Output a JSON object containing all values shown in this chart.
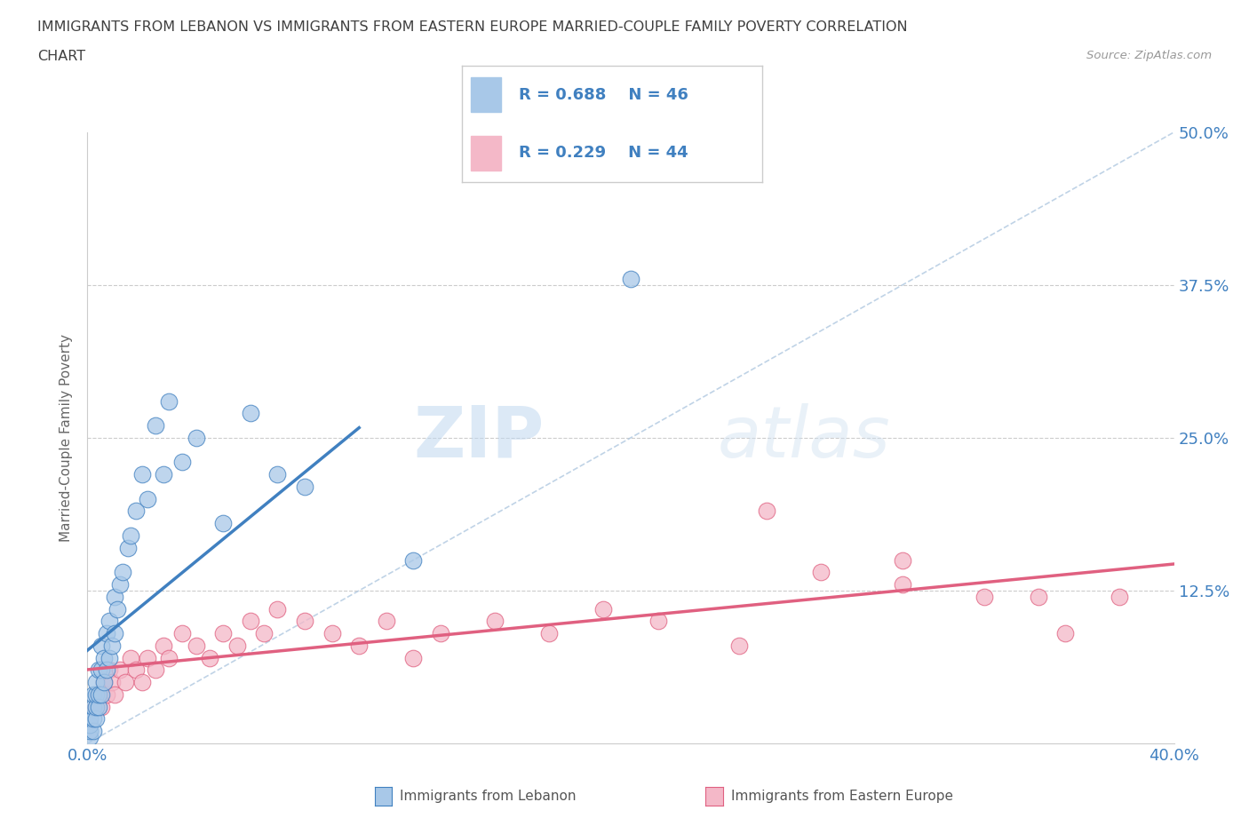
{
  "title_line1": "IMMIGRANTS FROM LEBANON VS IMMIGRANTS FROM EASTERN EUROPE MARRIED-COUPLE FAMILY POVERTY CORRELATION",
  "title_line2": "CHART",
  "source": "Source: ZipAtlas.com",
  "ylabel": "Married-Couple Family Poverty",
  "xmin": 0.0,
  "xmax": 0.4,
  "ymin": 0.0,
  "ymax": 0.5,
  "lebanon_color": "#A8C8E8",
  "eastern_europe_color": "#F4B8C8",
  "regression_blue_color": "#4080C0",
  "regression_pink_color": "#E06080",
  "diagonal_color": "#B0C8E0",
  "legend_R1": "R = 0.688",
  "legend_N1": "N = 46",
  "legend_R2": "R = 0.229",
  "legend_N2": "N = 44",
  "label1": "Immigrants from Lebanon",
  "label2": "Immigrants from Eastern Europe",
  "lebanon_x": [
    0.001,
    0.001,
    0.001,
    0.001,
    0.002,
    0.002,
    0.002,
    0.002,
    0.003,
    0.003,
    0.003,
    0.003,
    0.004,
    0.004,
    0.004,
    0.005,
    0.005,
    0.005,
    0.006,
    0.006,
    0.007,
    0.007,
    0.008,
    0.008,
    0.009,
    0.01,
    0.01,
    0.011,
    0.012,
    0.013,
    0.015,
    0.016,
    0.018,
    0.02,
    0.022,
    0.025,
    0.028,
    0.03,
    0.035,
    0.04,
    0.05,
    0.06,
    0.07,
    0.08,
    0.12,
    0.2
  ],
  "lebanon_y": [
    0.005,
    0.01,
    0.015,
    0.02,
    0.01,
    0.02,
    0.03,
    0.04,
    0.02,
    0.03,
    0.04,
    0.05,
    0.03,
    0.04,
    0.06,
    0.04,
    0.06,
    0.08,
    0.05,
    0.07,
    0.06,
    0.09,
    0.07,
    0.1,
    0.08,
    0.09,
    0.12,
    0.11,
    0.13,
    0.14,
    0.16,
    0.17,
    0.19,
    0.22,
    0.2,
    0.26,
    0.22,
    0.28,
    0.23,
    0.25,
    0.18,
    0.27,
    0.22,
    0.21,
    0.15,
    0.38
  ],
  "eastern_europe_x": [
    0.003,
    0.004,
    0.005,
    0.006,
    0.007,
    0.008,
    0.009,
    0.01,
    0.012,
    0.014,
    0.016,
    0.018,
    0.02,
    0.022,
    0.025,
    0.028,
    0.03,
    0.035,
    0.04,
    0.045,
    0.05,
    0.055,
    0.06,
    0.065,
    0.07,
    0.08,
    0.09,
    0.1,
    0.11,
    0.12,
    0.13,
    0.15,
    0.17,
    0.19,
    0.21,
    0.24,
    0.27,
    0.3,
    0.33,
    0.36,
    0.38,
    0.25,
    0.3,
    0.35
  ],
  "eastern_europe_y": [
    0.03,
    0.04,
    0.03,
    0.05,
    0.04,
    0.06,
    0.05,
    0.04,
    0.06,
    0.05,
    0.07,
    0.06,
    0.05,
    0.07,
    0.06,
    0.08,
    0.07,
    0.09,
    0.08,
    0.07,
    0.09,
    0.08,
    0.1,
    0.09,
    0.11,
    0.1,
    0.09,
    0.08,
    0.1,
    0.07,
    0.09,
    0.1,
    0.09,
    0.11,
    0.1,
    0.08,
    0.14,
    0.13,
    0.12,
    0.09,
    0.12,
    0.19,
    0.15,
    0.12
  ],
  "watermark_zip": "ZIP",
  "watermark_atlas": "atlas",
  "background_color": "#FFFFFF",
  "grid_color": "#CCCCCC",
  "axis_label_color": "#4080C0",
  "title_color": "#404040",
  "tick_label_color": "#4080C0"
}
